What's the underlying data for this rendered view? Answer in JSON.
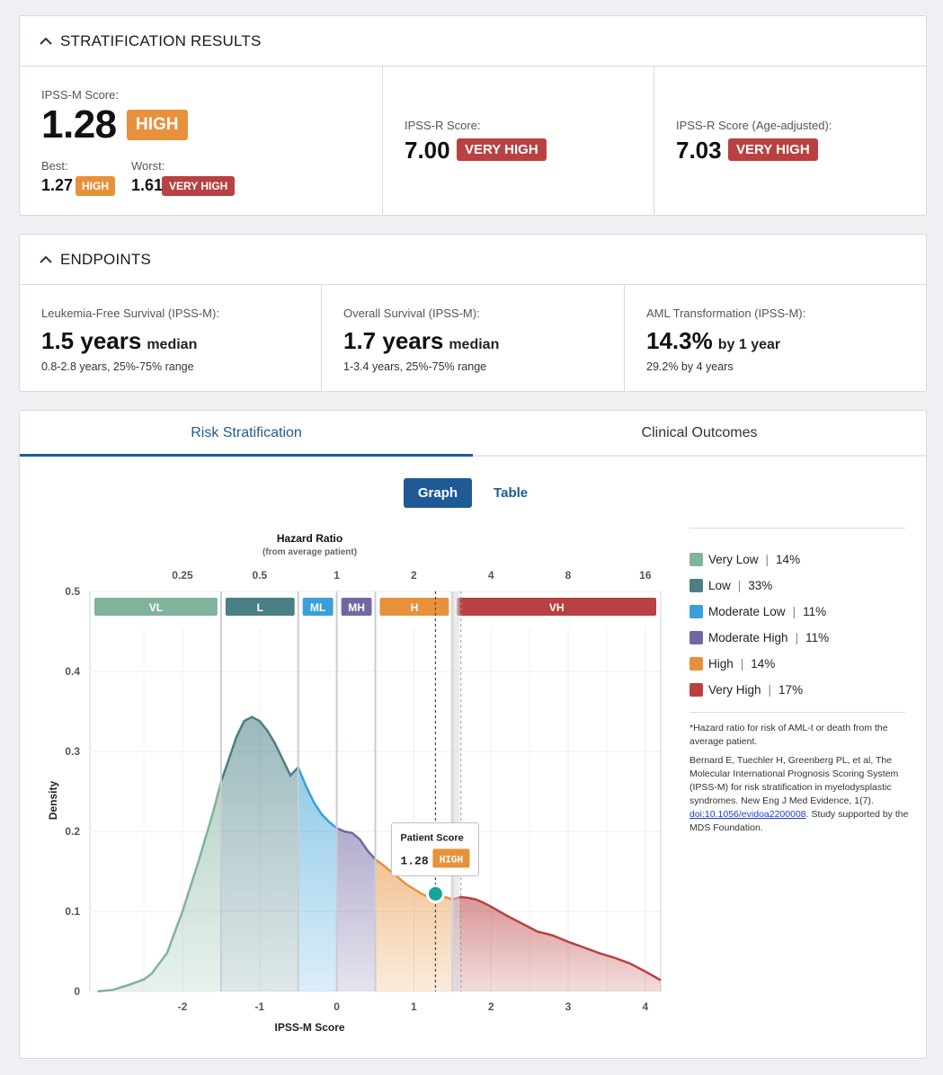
{
  "stratification": {
    "title": "STRATIFICATION RESULTS",
    "ipssm": {
      "label": "IPSS-M Score:",
      "score": "1.28",
      "category": "HIGH",
      "best_label": "Best:",
      "best_score": "1.27",
      "best_category": "HIGH",
      "worst_label": "Worst:",
      "worst_score": "1.61",
      "worst_category": "VERY HIGH"
    },
    "ipssr": {
      "label": "IPSS-R Score:",
      "score": "7.00",
      "category": "VERY HIGH"
    },
    "ipssr_age": {
      "label": "IPSS-R Score (Age-adjusted):",
      "score": "7.03",
      "category": "VERY HIGH"
    }
  },
  "endpoints": {
    "title": "ENDPOINTS",
    "items": [
      {
        "label": "Leukemia-Free Survival (IPSS-M):",
        "value": "1.5 years",
        "unit": "median",
        "sub": "0.8-2.8 years, 25%-75% range"
      },
      {
        "label": "Overall Survival (IPSS-M):",
        "value": "1.7 years",
        "unit": "median",
        "sub": "1-3.4 years, 25%-75% range"
      },
      {
        "label": "AML Transformation (IPSS-M):",
        "value": "14.3%",
        "unit": "by 1 year",
        "sub": "29.2% by 4 years"
      }
    ]
  },
  "tabs": [
    "Risk Stratification",
    "Clinical Outcomes"
  ],
  "view_toggle": {
    "graph": "Graph",
    "table": "Table"
  },
  "legend": [
    {
      "label": "Very Low",
      "pct": "14%",
      "color": "#7fb39b"
    },
    {
      "label": "Low",
      "pct": "33%",
      "color": "#4a7f85"
    },
    {
      "label": "Moderate Low",
      "pct": "11%",
      "color": "#39a0d8"
    },
    {
      "label": "Moderate High",
      "pct": "11%",
      "color": "#7168a3"
    },
    {
      "label": "High",
      "pct": "14%",
      "color": "#e8913c"
    },
    {
      "label": "Very High",
      "pct": "17%",
      "color": "#b94141"
    }
  ],
  "notes": {
    "hazard_note": "*Hazard ratio for risk of AML-t or death from the average patient.",
    "citation": "Bernard E, Tuechler H, Greenberg PL, et al, The Molecular International Prognosis Scoring System (IPSS-M) for risk stratification in myelodysplastic syndromes. New Eng J Med Evidence, 1(7). ",
    "doi": "doi:10.1056/evidoa2200008",
    "support": ". Study supported by the MDS Foundation."
  },
  "chart_data": {
    "type": "area",
    "title": "Hazard Ratio",
    "subtitle": "(from average patient)",
    "xlabel": "IPSS-M Score",
    "ylabel": "Density",
    "xlim": [
      -3.2,
      4.2
    ],
    "ylim": [
      0,
      0.5
    ],
    "x_ticks": [
      -2,
      -1,
      0,
      1,
      2,
      3,
      4
    ],
    "y_ticks": [
      0,
      0.1,
      0.2,
      0.3,
      0.4,
      0.5
    ],
    "y_tick_labels": [
      "0",
      "0.1",
      "0.2",
      "0.3",
      "0.4",
      "0.5"
    ],
    "hazard_ticks": [
      {
        "label": "0.25",
        "x": -2.0
      },
      {
        "label": "0.5",
        "x": -1.0
      },
      {
        "label": "1",
        "x": 0.0
      },
      {
        "label": "2",
        "x": 1.0
      },
      {
        "label": "4",
        "x": 2.0
      },
      {
        "label": "8",
        "x": 3.0
      },
      {
        "label": "16",
        "x": 4.0
      }
    ],
    "categories": [
      {
        "code": "VL",
        "from": -3.2,
        "to": -1.5,
        "color": "#7fb39b"
      },
      {
        "code": "L",
        "from": -1.5,
        "to": -0.5,
        "color": "#4a7f85"
      },
      {
        "code": "ML",
        "from": -0.5,
        "to": 0.0,
        "color": "#39a0d8"
      },
      {
        "code": "MH",
        "from": 0.0,
        "to": 0.5,
        "color": "#7168a3"
      },
      {
        "code": "H",
        "from": 0.5,
        "to": 1.5,
        "color": "#e8913c"
      },
      {
        "code": "VH",
        "from": 1.5,
        "to": 4.2,
        "color": "#b94141"
      }
    ],
    "density": {
      "x": [
        -3.1,
        -2.9,
        -2.7,
        -2.5,
        -2.4,
        -2.2,
        -2.0,
        -1.8,
        -1.6,
        -1.5,
        -1.4,
        -1.3,
        -1.2,
        -1.1,
        -1.0,
        -0.9,
        -0.8,
        -0.7,
        -0.6,
        -0.5,
        -0.4,
        -0.3,
        -0.2,
        -0.1,
        0.0,
        0.1,
        0.2,
        0.3,
        0.4,
        0.5,
        0.6,
        0.7,
        0.8,
        0.9,
        1.0,
        1.1,
        1.2,
        1.3,
        1.4,
        1.5,
        1.6,
        1.7,
        1.8,
        1.9,
        2.0,
        2.2,
        2.4,
        2.6,
        2.8,
        3.0,
        3.2,
        3.4,
        3.6,
        3.8,
        4.0,
        4.2
      ],
      "y": [
        0.0,
        0.002,
        0.008,
        0.015,
        0.022,
        0.048,
        0.1,
        0.16,
        0.225,
        0.262,
        0.29,
        0.318,
        0.338,
        0.343,
        0.338,
        0.326,
        0.31,
        0.29,
        0.27,
        0.28,
        0.257,
        0.237,
        0.222,
        0.212,
        0.204,
        0.2,
        0.198,
        0.19,
        0.176,
        0.165,
        0.158,
        0.15,
        0.142,
        0.134,
        0.128,
        0.122,
        0.118,
        0.12,
        0.118,
        0.115,
        0.118,
        0.117,
        0.115,
        0.111,
        0.106,
        0.095,
        0.085,
        0.075,
        0.07,
        0.062,
        0.055,
        0.048,
        0.042,
        0.035,
        0.025,
        0.014
      ]
    },
    "patient": {
      "label": "Patient Score",
      "score": 1.28,
      "score_text": "1.28",
      "category": "HIGH",
      "density": 0.122
    }
  }
}
